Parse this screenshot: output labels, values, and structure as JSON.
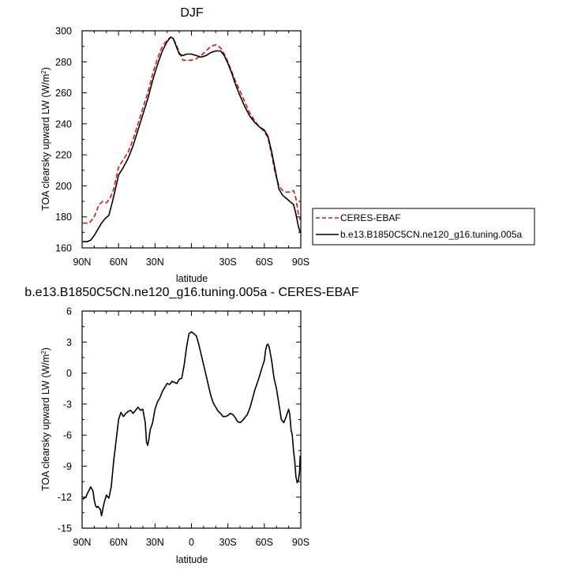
{
  "chart_data": [
    {
      "type": "line",
      "title": "DJF",
      "xlabel": "latitude",
      "ylabel": "TOA clearsky upward LW (W/m²)",
      "xlim": [
        90,
        -90
      ],
      "ylim": [
        160,
        300
      ],
      "x_ticks": [
        90,
        60,
        30,
        0,
        -30,
        -60,
        -90
      ],
      "x_tick_labels": [
        "90N",
        "60N",
        "30N",
        "",
        "30S",
        "60S",
        "90S"
      ],
      "y_ticks": [
        160,
        180,
        200,
        220,
        240,
        260,
        280,
        300
      ],
      "y_tick_labels": [
        "160",
        "180",
        "200",
        "220",
        "240",
        "260",
        "280",
        "300"
      ],
      "legend_position": "right",
      "series": [
        {
          "name": "CERES-EBAF",
          "color": "#e01010",
          "dash": "dashed",
          "x": [
            89.5,
            84,
            80,
            76,
            73,
            70,
            67,
            64,
            60,
            56,
            52,
            48,
            44,
            40,
            36,
            32,
            28,
            24,
            20,
            17,
            15,
            13,
            10,
            7,
            4,
            0,
            -4,
            -8,
            -12,
            -16,
            -20,
            -24,
            -27,
            -30,
            -33,
            -36,
            -40,
            -44,
            -48,
            -52,
            -56,
            -60,
            -63,
            -66,
            -69,
            -72,
            -75,
            -78,
            -81,
            -84,
            -86,
            -88,
            -89.5
          ],
          "y": [
            176,
            176,
            180,
            188,
            190,
            189,
            192,
            198,
            212,
            217,
            222,
            230,
            240,
            250,
            260,
            272,
            282,
            290,
            294,
            296,
            295,
            292,
            286,
            281,
            281,
            281,
            282,
            284,
            287,
            290,
            291,
            289,
            285,
            280,
            274,
            268,
            261,
            254,
            247,
            242,
            238,
            235,
            231,
            220,
            208,
            200,
            197,
            196,
            196,
            197,
            192,
            182,
            178
          ]
        },
        {
          "name": "b.e13.B1850C5CN.ne120_g16.tuning.005a",
          "color": "#000000",
          "dash": "solid",
          "x": [
            89.5,
            86,
            83,
            80,
            77,
            74,
            71,
            68,
            65,
            62,
            60,
            56,
            52,
            48,
            44,
            40,
            36,
            32,
            28,
            24,
            20,
            17,
            15,
            13,
            10,
            7,
            4,
            0,
            -4,
            -8,
            -12,
            -16,
            -20,
            -24,
            -27,
            -30,
            -33,
            -36,
            -40,
            -44,
            -48,
            -52,
            -56,
            -60,
            -63,
            -66,
            -69,
            -72,
            -75,
            -78,
            -81,
            -84,
            -86,
            -88,
            -89.5
          ],
          "y": [
            164,
            164,
            165,
            168,
            172,
            176,
            179,
            181,
            190,
            200,
            207,
            212,
            218,
            226,
            236,
            246,
            256,
            268,
            278,
            287,
            293,
            296,
            295,
            291,
            285,
            284,
            285,
            285,
            284,
            283,
            284,
            286,
            287,
            287,
            284,
            279,
            273,
            266,
            258,
            251,
            245,
            241,
            238,
            236,
            232,
            222,
            210,
            198,
            194,
            192,
            190,
            188,
            182,
            174,
            170
          ]
        }
      ]
    },
    {
      "type": "line",
      "title": "b.e13.B1850C5CN.ne120_g16.tuning.005a - CERES-EBAF",
      "xlabel": "latitude",
      "ylabel": "TOA clearsky upward LW (W/m²)",
      "xlim": [
        90,
        -90
      ],
      "ylim": [
        -15,
        6
      ],
      "x_ticks": [
        90,
        60,
        30,
        0,
        -30,
        -60,
        -90
      ],
      "x_tick_labels": [
        "90N",
        "60N",
        "30N",
        "0",
        "30S",
        "60S",
        "90S"
      ],
      "y_ticks": [
        -15,
        -12,
        -9,
        -6,
        -3,
        0,
        3,
        6
      ],
      "y_tick_labels": [
        "-15",
        "-12",
        "-9",
        "-6",
        "-3",
        "0",
        "3",
        "6"
      ],
      "series": [
        {
          "color": "#000000",
          "dash": "solid",
          "x": [
            89.5,
            87,
            85,
            83,
            81,
            80,
            79,
            78,
            77,
            75,
            74,
            72,
            70,
            68,
            66,
            64,
            62,
            60,
            58,
            56,
            54,
            52,
            50,
            48,
            46,
            44,
            42,
            40,
            38,
            37,
            36,
            35,
            34,
            32,
            30,
            28,
            26,
            24,
            22,
            20,
            18,
            16,
            14,
            12,
            10,
            8,
            6,
            4,
            2,
            0,
            -2,
            -4,
            -6,
            -8,
            -10,
            -12,
            -14,
            -16,
            -18,
            -20,
            -22,
            -24,
            -26,
            -28,
            -30,
            -32,
            -34,
            -36,
            -38,
            -40,
            -42,
            -44,
            -46,
            -48,
            -50,
            -52,
            -54,
            -56,
            -58,
            -60,
            -61,
            -62,
            -63,
            -64,
            -66,
            -68,
            -70,
            -72,
            -74,
            -76,
            -78,
            -80,
            -81,
            -82,
            -83,
            -84,
            -85,
            -86,
            -87,
            -88,
            -89,
            -89.5
          ],
          "y": [
            -12.2,
            -12.0,
            -11.5,
            -11.0,
            -11.4,
            -12.3,
            -12.8,
            -13.0,
            -12.9,
            -13.2,
            -13.8,
            -12.6,
            -11.8,
            -12.1,
            -11.0,
            -8.5,
            -6.5,
            -4.5,
            -3.8,
            -4.2,
            -3.9,
            -3.7,
            -3.6,
            -3.9,
            -3.6,
            -3.3,
            -3.6,
            -3.5,
            -4.8,
            -6.7,
            -7.0,
            -6.4,
            -5.5,
            -4.8,
            -3.5,
            -2.8,
            -2.4,
            -1.8,
            -1.4,
            -1.0,
            -1.1,
            -0.8,
            -0.9,
            -1.0,
            -0.6,
            -0.5,
            0.8,
            2.5,
            3.8,
            4.0,
            3.8,
            3.6,
            2.8,
            1.8,
            0.8,
            -0.2,
            -1.2,
            -2.2,
            -2.9,
            -3.3,
            -3.7,
            -3.9,
            -4.2,
            -4.2,
            -4.1,
            -3.9,
            -4.0,
            -4.3,
            -4.7,
            -4.8,
            -4.6,
            -4.3,
            -4.0,
            -3.4,
            -2.6,
            -1.7,
            -1.0,
            -0.3,
            0.5,
            1.2,
            2.2,
            2.7,
            2.8,
            2.5,
            1.2,
            -0.5,
            -1.5,
            -3.0,
            -4.5,
            -4.8,
            -4.2,
            -3.5,
            -4.0,
            -5.5,
            -6.0,
            -7.5,
            -8.5,
            -10.0,
            -10.6,
            -10.4,
            -9.5,
            -8.0
          ]
        }
      ]
    }
  ],
  "legend": {
    "items": [
      {
        "label": "CERES-EBAF"
      },
      {
        "label": "b.e13.B1850C5CN.ne120_g16.tuning.005a"
      }
    ]
  }
}
